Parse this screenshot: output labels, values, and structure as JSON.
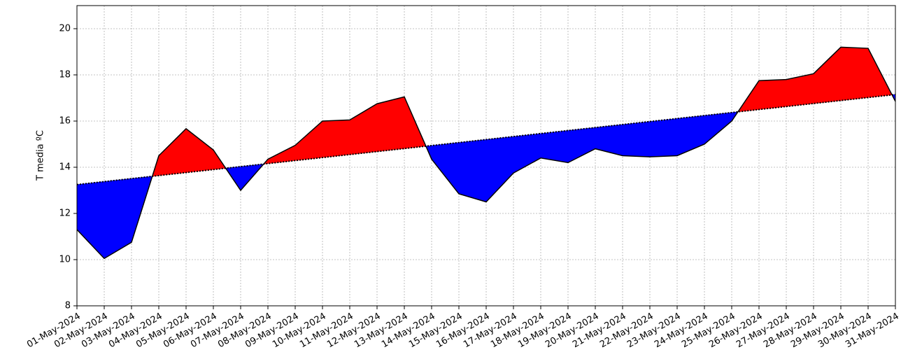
{
  "chart_data": {
    "type": "line_fill_between",
    "y_label": "T media ºC",
    "categories": [
      "01-May-2024",
      "02-May-2024",
      "03-May-2024",
      "04-May-2024",
      "05-May-2024",
      "06-May-2024",
      "07-May-2024",
      "08-May-2024",
      "09-May-2024",
      "10-May-2024",
      "11-May-2024",
      "12-May-2024",
      "13-May-2024",
      "14-May-2024",
      "15-May-2024",
      "16-May-2024",
      "17-May-2024",
      "18-May-2024",
      "19-May-2024",
      "20-May-2024",
      "21-May-2024",
      "22-May-2024",
      "23-May-2024",
      "24-May-2024",
      "25-May-2024",
      "26-May-2024",
      "27-May-2024",
      "28-May-2024",
      "29-May-2024",
      "30-May-2024",
      "31-May-2024"
    ],
    "series": [
      {
        "color": "#000000",
        "values": [
          11.3,
          10.05,
          10.75,
          14.5,
          15.67,
          14.75,
          13.0,
          14.35,
          14.95,
          16.0,
          16.05,
          16.75,
          17.05,
          14.35,
          12.85,
          12.5,
          13.75,
          14.4,
          14.2,
          14.8,
          14.5,
          14.45,
          14.5,
          15.0,
          16.0,
          17.75,
          17.8,
          18.05,
          19.2,
          19.15,
          16.85
        ]
      },
      {
        "color": "#000000",
        "dotted": true,
        "values": [
          13.25,
          13.38,
          13.51,
          13.64,
          13.77,
          13.9,
          14.03,
          14.16,
          14.29,
          14.42,
          14.55,
          14.68,
          14.81,
          14.94,
          15.07,
          15.2,
          15.33,
          15.46,
          15.59,
          15.72,
          15.85,
          15.98,
          16.11,
          16.24,
          16.37,
          16.5,
          16.63,
          16.76,
          16.89,
          17.02,
          17.15
        ]
      }
    ],
    "above_color": "#ff0000",
    "below_color": "#0000ff",
    "ylim": [
      8,
      21
    ],
    "yticks": [
      8,
      10,
      12,
      14,
      16,
      18,
      20
    ],
    "grid": true
  }
}
